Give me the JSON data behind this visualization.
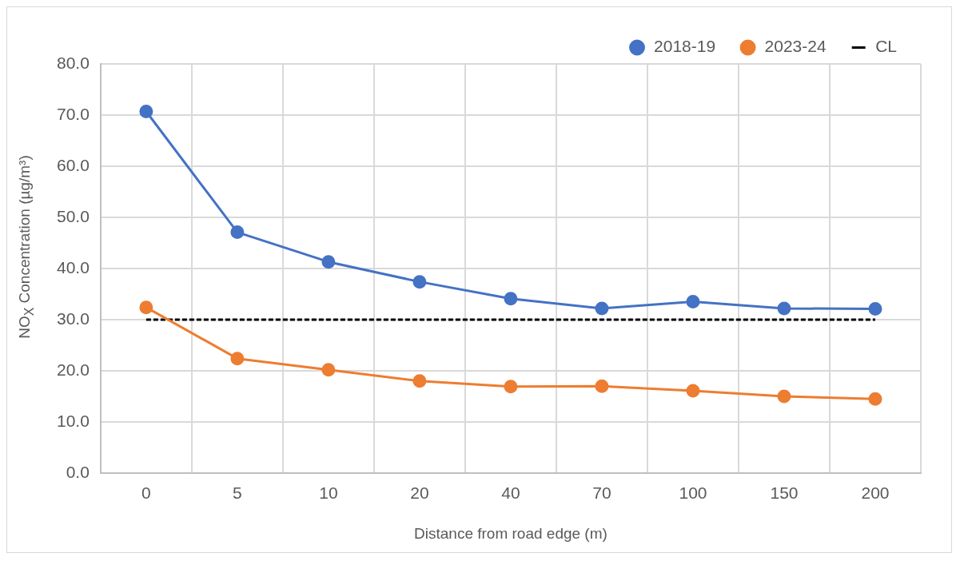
{
  "chart_data": {
    "type": "line",
    "xlabel": "Distance from road edge (m)",
    "ylabel": "NO$_{X}$ Concentration (µg/m³)",
    "categories": [
      "0",
      "5",
      "10",
      "20",
      "40",
      "70",
      "100",
      "150",
      "200"
    ],
    "series": [
      {
        "name": "2018-19",
        "color": "#4472c4",
        "values": [
          70.7,
          47.1,
          41.3,
          37.4,
          34.1,
          32.2,
          33.5,
          32.2,
          32.1
        ]
      },
      {
        "name": "2023-24",
        "color": "#ed7d31",
        "values": [
          32.4,
          22.4,
          20.2,
          18.0,
          16.9,
          17.0,
          16.1,
          15.0,
          14.5
        ]
      },
      {
        "name": "CL",
        "color": "#000000",
        "values": [
          30,
          30,
          30,
          30,
          30,
          30,
          30,
          30,
          30
        ],
        "line_style": "dashed",
        "marker": "none"
      }
    ],
    "ylim": [
      0,
      80
    ],
    "yticks": [
      {
        "value": 0,
        "label": "0.0"
      },
      {
        "value": 10,
        "label": "10.0"
      },
      {
        "value": 20,
        "label": "20.0"
      },
      {
        "value": 30,
        "label": "30.0"
      },
      {
        "value": 40,
        "label": "40.0"
      },
      {
        "value": 50,
        "label": "50.0"
      },
      {
        "value": 60,
        "label": "60.0"
      },
      {
        "value": 70,
        "label": "70.0"
      },
      {
        "value": 80,
        "label": "80.0"
      }
    ],
    "grid": true,
    "legend": "top right",
    "marker": "circle",
    "line_style": "solid"
  }
}
